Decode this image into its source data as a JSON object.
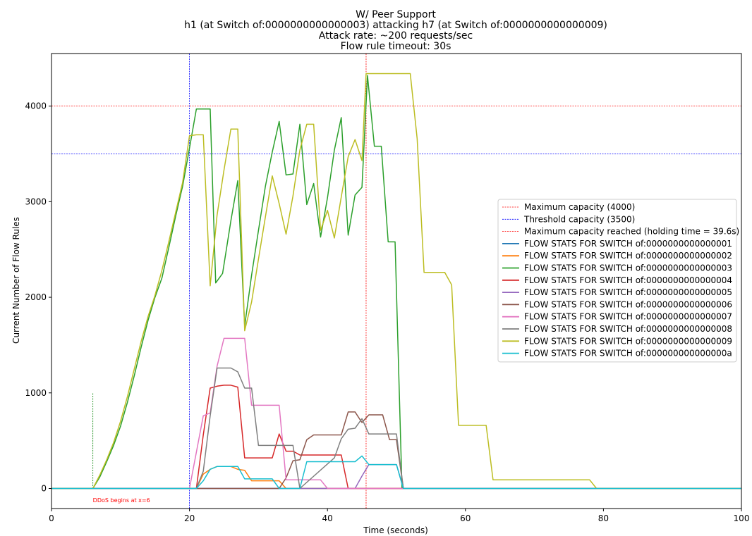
{
  "chart_data": {
    "type": "line",
    "title_lines": [
      "W/ Peer Support",
      "h1 (at Switch of:0000000000000003) attacking h7 (at Switch of:0000000000000009)",
      "Attack rate: ~200 requests/sec",
      "Flow rule timeout: 30s"
    ],
    "xlabel": "Time (seconds)",
    "ylabel": "Current Number of Flow Rules",
    "xlim": [
      0,
      100
    ],
    "ylim": [
      -210,
      4550
    ],
    "xticks": [
      0,
      20,
      40,
      60,
      80,
      100
    ],
    "xtick_labels": [
      "0",
      "20",
      "40",
      "60",
      "80",
      "100"
    ],
    "yticks": [
      0,
      1000,
      2000,
      3000,
      4000
    ],
    "ytick_labels": [
      "0",
      "1000",
      "2000",
      "3000",
      "4000"
    ],
    "grid": false,
    "legend_position": "center-right",
    "reference_lines": [
      {
        "kind": "hline",
        "value": 4000,
        "color": "#ff0000",
        "name": "Maximum capacity (4000)",
        "in_legend": true
      },
      {
        "kind": "hline",
        "value": 3500,
        "color": "#0000ff",
        "name": "Threshold capacity (3500)",
        "in_legend": true
      },
      {
        "kind": "vline",
        "value": 45.6,
        "color": "#ff0000",
        "name": "Maximum capacity reached (holding time = 39.6s)",
        "in_legend": true
      },
      {
        "kind": "vline",
        "value": 20,
        "color": "#0000ff",
        "name": "",
        "in_legend": false
      },
      {
        "kind": "vsegment",
        "value": 6,
        "y0": 0,
        "y1": 1000,
        "color": "#008000",
        "name": "",
        "in_legend": false
      }
    ],
    "annotations": [
      {
        "text": "DDoS begins at x=6",
        "x": 6,
        "y": -120,
        "color": "#ff0000"
      }
    ],
    "series": [
      {
        "name": "FLOW STATS FOR SWITCH of:0000000000000001",
        "color": "#1f77b4",
        "x": [
          0,
          100
        ],
        "y": [
          0,
          0
        ]
      },
      {
        "name": "FLOW STATS FOR SWITCH of:0000000000000002",
        "color": "#ff7f0e",
        "x": [
          0,
          21,
          22,
          23,
          24,
          25,
          26,
          27,
          28,
          29,
          30,
          31,
          32,
          33,
          34,
          100
        ],
        "y": [
          0,
          0,
          150,
          200,
          230,
          230,
          230,
          200,
          190,
          80,
          80,
          80,
          80,
          80,
          0,
          0
        ]
      },
      {
        "name": "FLOW STATS FOR SWITCH of:0000000000000003",
        "color": "#2ca02c",
        "x": [
          0,
          6,
          7,
          8,
          9,
          10,
          11,
          12,
          13,
          14,
          15,
          16,
          17,
          18,
          19,
          20,
          21,
          22,
          23,
          23.8,
          24.8,
          26,
          27,
          28,
          29,
          30,
          31,
          32,
          33,
          34,
          35,
          36,
          37,
          38,
          39,
          40,
          41,
          42,
          43,
          44,
          45,
          45.8,
          46.8,
          47.8,
          48.8,
          49.8,
          50.8,
          51,
          100
        ],
        "y": [
          0,
          0,
          120,
          280,
          450,
          650,
          900,
          1180,
          1480,
          1760,
          2000,
          2200,
          2520,
          2850,
          3160,
          3560,
          3970,
          3970,
          3970,
          2150,
          2250,
          2800,
          3220,
          1700,
          2230,
          2700,
          3160,
          3520,
          3840,
          3280,
          3290,
          3810,
          2970,
          3190,
          2630,
          3040,
          3540,
          3880,
          2650,
          3070,
          3150,
          4320,
          3580,
          3580,
          2580,
          2580,
          0,
          0,
          0
        ]
      },
      {
        "name": "FLOW STATS FOR SWITCH of:0000000000000004",
        "color": "#d62728",
        "x": [
          0,
          21,
          22,
          23,
          24,
          25,
          26,
          27,
          28,
          29,
          30,
          31,
          32,
          33,
          34,
          35,
          36,
          37,
          38,
          39,
          40,
          41,
          42,
          43,
          44,
          100
        ],
        "y": [
          0,
          0,
          560,
          1050,
          1070,
          1080,
          1080,
          1060,
          320,
          320,
          320,
          320,
          320,
          570,
          390,
          390,
          350,
          350,
          350,
          350,
          350,
          350,
          350,
          0,
          0,
          0
        ]
      },
      {
        "name": "FLOW STATS FOR SWITCH of:0000000000000005",
        "color": "#9467bd",
        "x": [
          0,
          43,
          44,
          45,
          46,
          47,
          48,
          49,
          50,
          51,
          100
        ],
        "y": [
          0,
          0,
          0,
          130,
          250,
          250,
          250,
          250,
          250,
          0,
          0
        ]
      },
      {
        "name": "FLOW STATS FOR SWITCH of:0000000000000006",
        "color": "#8c564b",
        "x": [
          0,
          33,
          34,
          35,
          36,
          37,
          38,
          39,
          40,
          41,
          42,
          43,
          44,
          45,
          46,
          47,
          48,
          49,
          50,
          51,
          100
        ],
        "y": [
          0,
          0,
          110,
          290,
          300,
          510,
          560,
          560,
          560,
          560,
          560,
          800,
          800,
          690,
          770,
          770,
          770,
          510,
          510,
          0,
          0
        ]
      },
      {
        "name": "FLOW STATS FOR SWITCH of:0000000000000007",
        "color": "#e377c2",
        "x": [
          0,
          20,
          21,
          22,
          23,
          24,
          25,
          26,
          27,
          28,
          29,
          30,
          31,
          32,
          33,
          34,
          35,
          36,
          37,
          38,
          39,
          40,
          100
        ],
        "y": [
          0,
          0,
          380,
          760,
          790,
          1280,
          1570,
          1570,
          1570,
          1570,
          870,
          870,
          870,
          870,
          870,
          90,
          90,
          90,
          90,
          90,
          90,
          0,
          0
        ]
      },
      {
        "name": "FLOW STATS FOR SWITCH of:0000000000000008",
        "color": "#7f7f7f",
        "x": [
          0,
          21,
          22,
          23,
          24,
          25,
          26,
          27,
          28,
          29,
          30,
          31,
          32,
          33,
          34,
          35,
          36,
          41,
          42,
          43,
          44,
          45,
          46,
          47,
          48,
          49,
          50,
          51,
          100
        ],
        "y": [
          0,
          0,
          180,
          760,
          1260,
          1260,
          1260,
          1220,
          1050,
          1050,
          450,
          450,
          450,
          450,
          450,
          450,
          0,
          320,
          520,
          620,
          630,
          730,
          570,
          570,
          570,
          570,
          570,
          0,
          0
        ]
      },
      {
        "name": "FLOW STATS FOR SWITCH of:0000000000000009",
        "color": "#bcbd22",
        "x": [
          0,
          6,
          7,
          8,
          9,
          10,
          11,
          12,
          13,
          14,
          15,
          16,
          17,
          18,
          19,
          20,
          21,
          22,
          23,
          24,
          25,
          26,
          27,
          28,
          29,
          30,
          31,
          32,
          33,
          34,
          35,
          36,
          37,
          38,
          39,
          40,
          41,
          42,
          43,
          44,
          45,
          45.6,
          46,
          52,
          53,
          54,
          55,
          57,
          58,
          59,
          60,
          63,
          64,
          78,
          79,
          100
        ],
        "y": [
          0,
          0,
          140,
          300,
          480,
          700,
          960,
          1250,
          1540,
          1800,
          2020,
          2280,
          2580,
          2890,
          3200,
          3690,
          3700,
          3700,
          2120,
          2860,
          3330,
          3760,
          3760,
          1650,
          1950,
          2400,
          2840,
          3270,
          2980,
          2660,
          3060,
          3540,
          3810,
          3810,
          2700,
          2910,
          2620,
          3050,
          3470,
          3650,
          3430,
          4340,
          4340,
          4340,
          3660,
          2260,
          2260,
          2260,
          2130,
          660,
          660,
          660,
          90,
          90,
          0,
          0
        ]
      },
      {
        "name": "FLOW STATS FOR SWITCH of:000000000000000a",
        "color": "#17becf",
        "x": [
          0,
          21,
          22,
          23,
          24,
          25,
          26,
          27,
          28,
          29,
          30,
          31,
          32,
          33,
          34,
          35,
          36,
          37,
          38,
          39,
          40,
          41,
          42,
          43,
          44,
          45,
          46,
          47,
          48,
          49,
          50,
          51,
          100
        ],
        "y": [
          0,
          0,
          80,
          200,
          230,
          230,
          230,
          230,
          100,
          100,
          100,
          100,
          100,
          0,
          0,
          0,
          0,
          280,
          280,
          280,
          280,
          280,
          280,
          280,
          280,
          340,
          250,
          250,
          250,
          250,
          250,
          0,
          0
        ]
      }
    ]
  }
}
